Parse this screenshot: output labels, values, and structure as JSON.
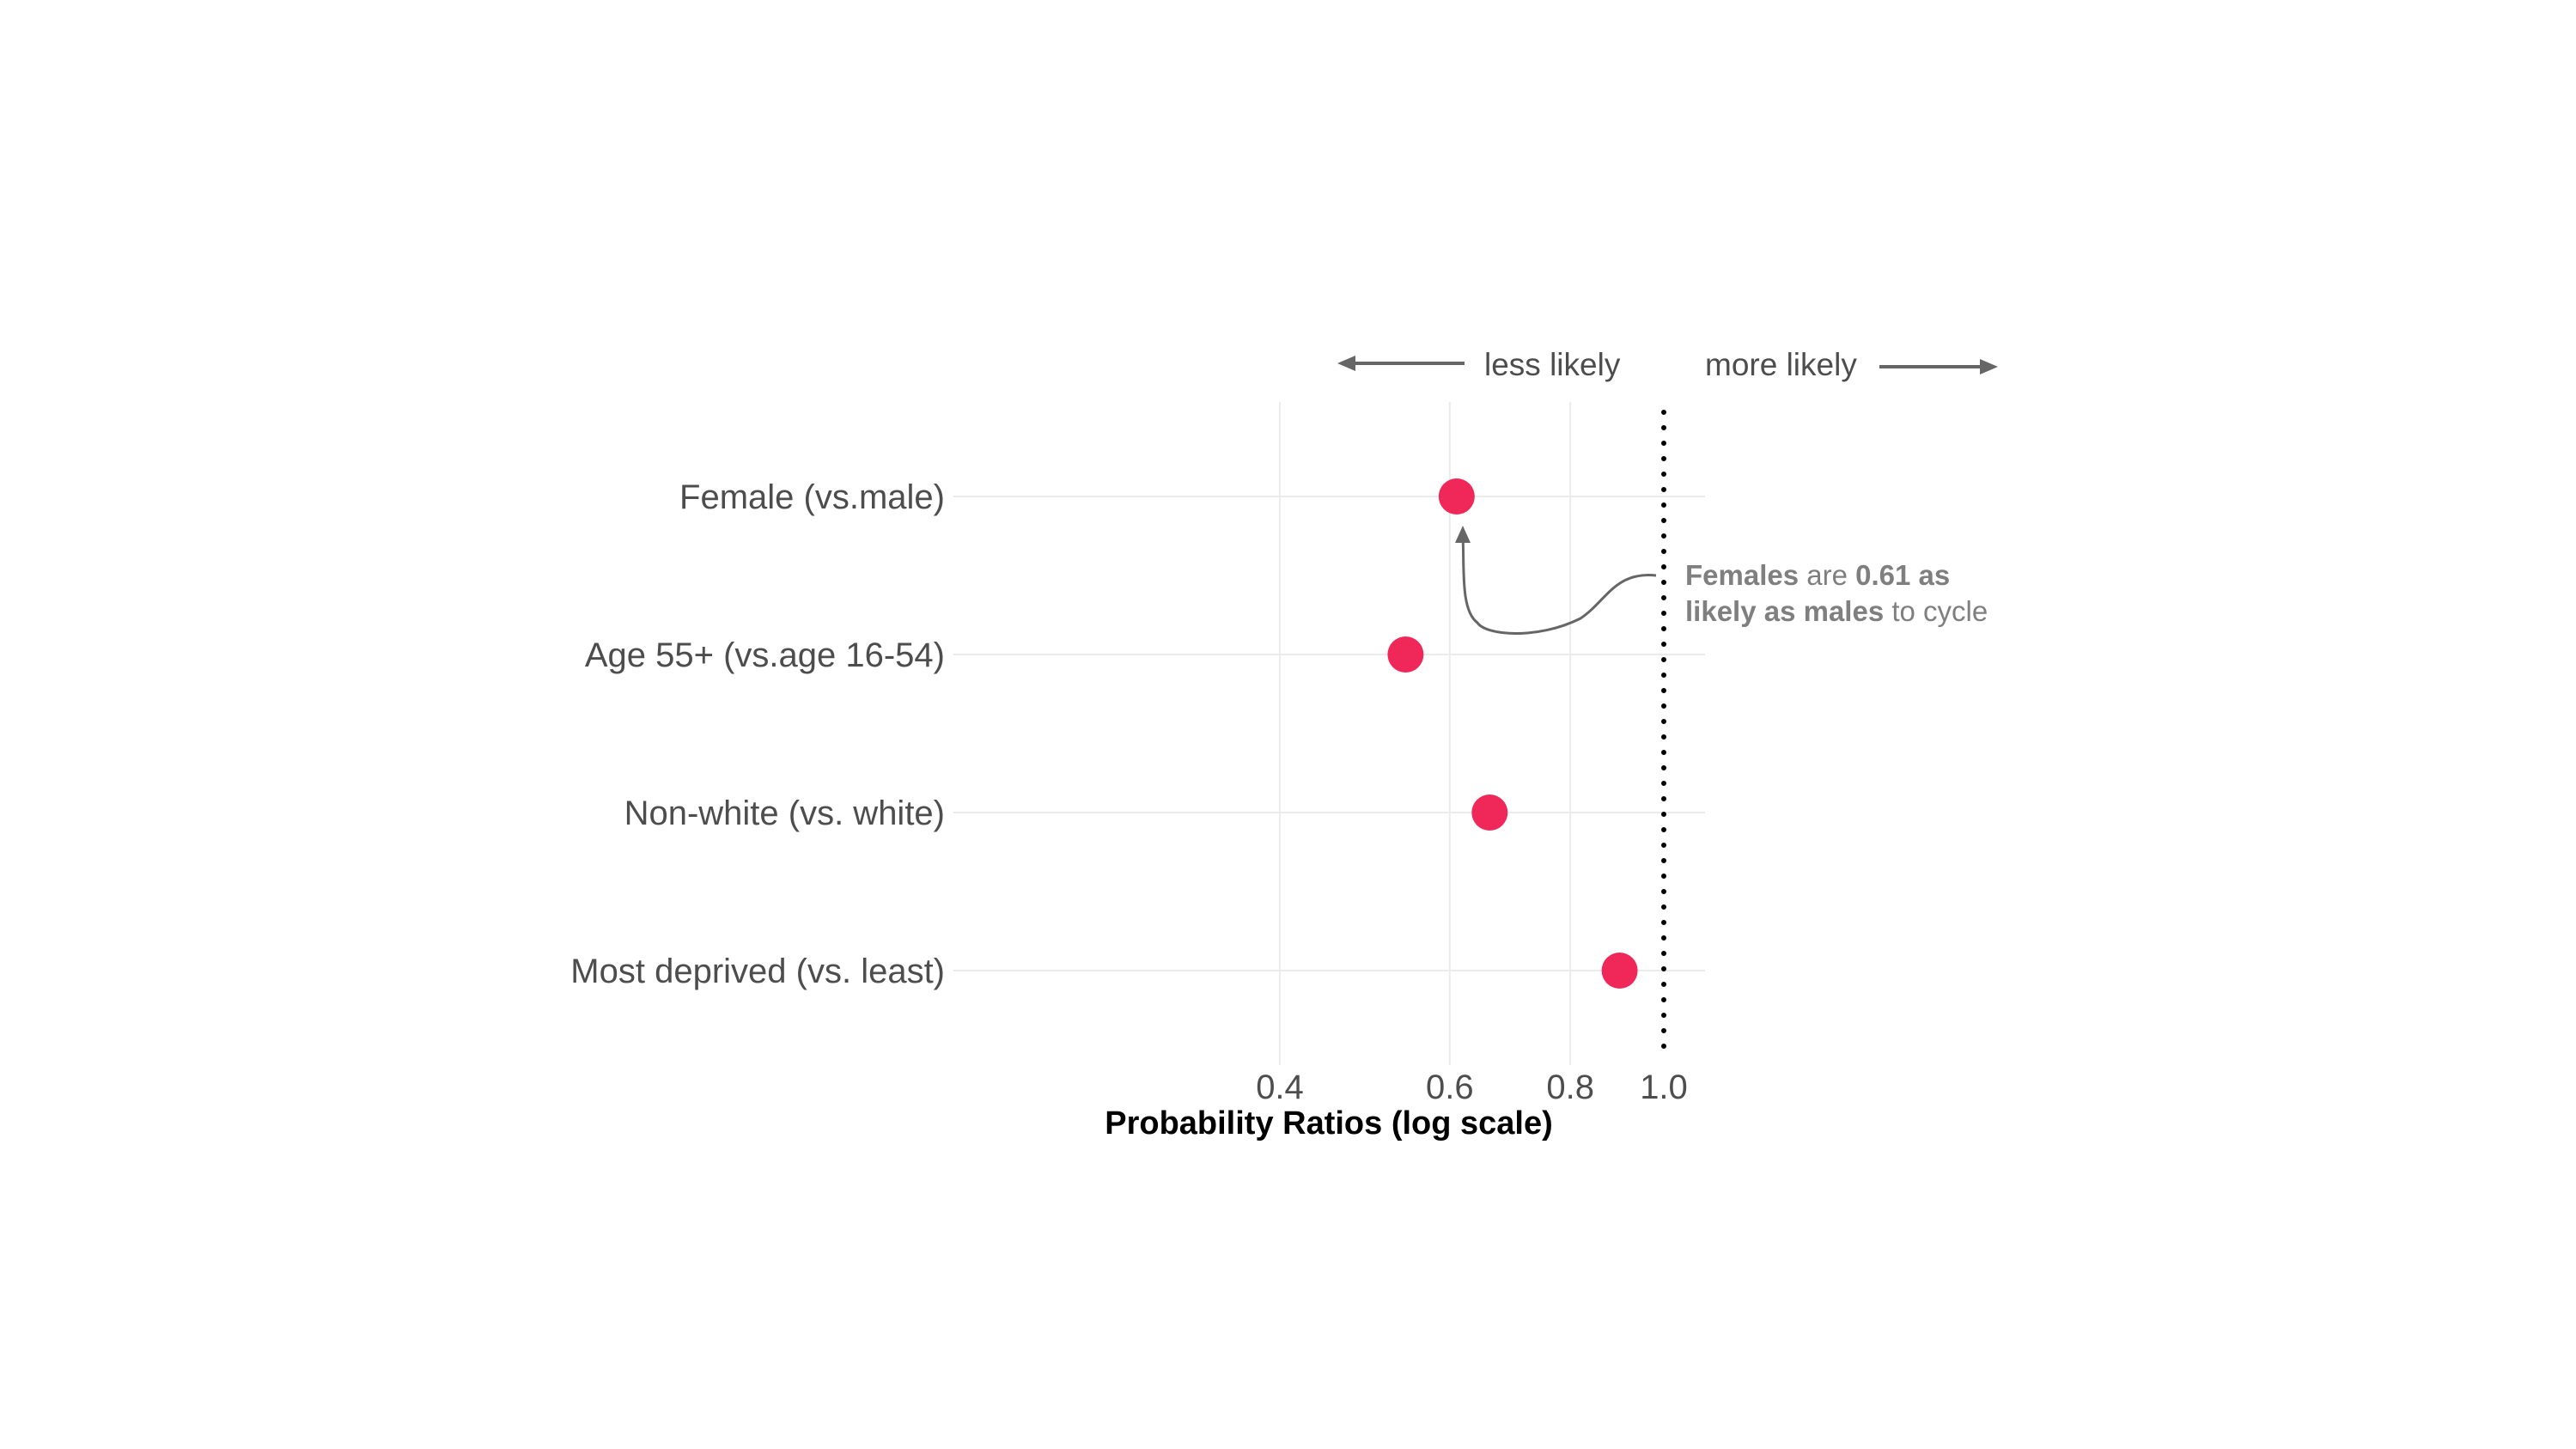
{
  "chart_data": {
    "type": "scatter",
    "categories": [
      "Female (vs.male)",
      "Age 55+ (vs.age 16-54)",
      "Non-white (vs. white)",
      "Most deprived (vs. least)"
    ],
    "values": [
      0.61,
      0.54,
      0.66,
      0.9
    ],
    "xlabel": "Probability Ratios (log scale)",
    "x_scale": "log",
    "xlim": [
      0.4,
      1.0
    ],
    "x_ticks": [
      0.4,
      0.6,
      0.8,
      1.0
    ],
    "x_tick_labels": [
      "0.4",
      "0.6",
      "0.8",
      "1.0"
    ],
    "reference_line": 1.0,
    "grid": true,
    "direction_labels": {
      "left": "less likely",
      "right": "more likely"
    },
    "annotation": {
      "line1": {
        "p1": "Females",
        "p2": " are ",
        "p3": "0.61 as"
      },
      "line2": {
        "p1": "likely as males",
        "p2": " to cycle"
      }
    },
    "colors": {
      "point": "#f0285a",
      "grid": "#ebebeb",
      "text": "#4d4d4d",
      "annotation": "#7f7f7f",
      "reference": "#000000"
    }
  }
}
